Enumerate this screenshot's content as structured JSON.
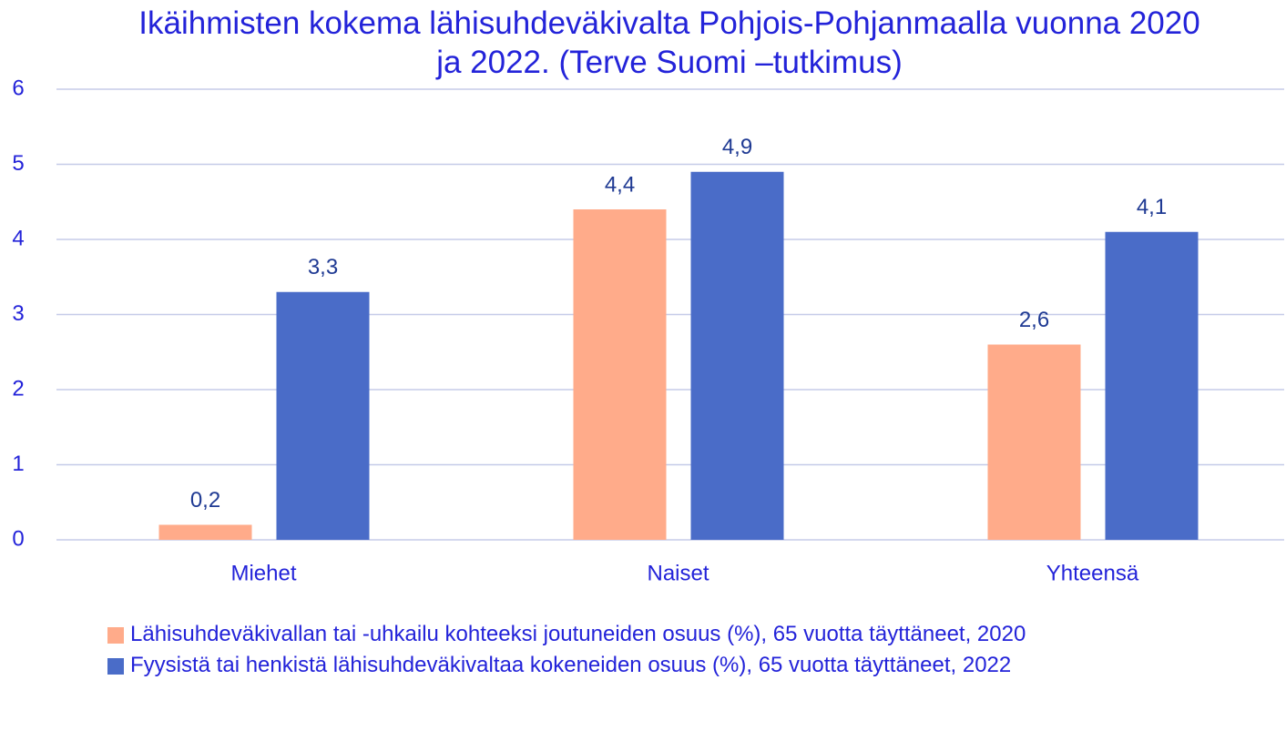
{
  "chart_data": {
    "type": "bar",
    "title": "Ikäihmisten kokema lähisuhdeväkivalta Pohjois-Pohjanmaalla vuonna 2020 ja 2022. (Terve Suomi –tutkimus)",
    "categories": [
      "Miehet",
      "Naiset",
      "Yhteensä"
    ],
    "series": [
      {
        "name": "Lähisuhdeväkivallan tai -uhkailu kohteeksi joutuneiden osuus (%), 65 vuotta täyttäneet, 2020",
        "color": "#ffab8a",
        "values": [
          0.2,
          4.4,
          2.6
        ],
        "value_labels": [
          "0,2",
          "4,4",
          "2,6"
        ]
      },
      {
        "name": "Fyysistä tai henkistä lähisuhdeväkivaltaa kokeneiden osuus (%), 65 vuotta täyttäneet, 2022",
        "color": "#4a6cc8",
        "values": [
          3.3,
          4.9,
          4.1
        ],
        "value_labels": [
          "3,3",
          "4,9",
          "4,1"
        ]
      }
    ],
    "ylim": [
      0,
      6
    ],
    "yticks": [
      0,
      1,
      2,
      3,
      4,
      5,
      6
    ],
    "grid": true,
    "legend": "bottom"
  }
}
